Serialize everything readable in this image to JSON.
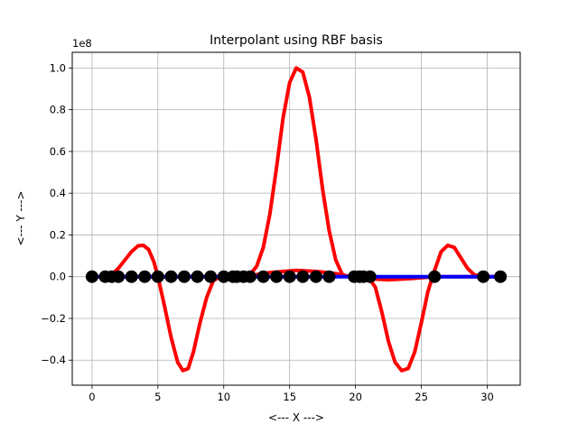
{
  "chart_data": {
    "type": "line",
    "title": "Interpolant using RBF basis",
    "xlabel": "<--- X --->",
    "ylabel": "<--- Y --->",
    "y_scale_label": "1e8",
    "xlim": [
      -1.5,
      32.5
    ],
    "ylim": [
      -0.52,
      1.075
    ],
    "y_multiplier": 100000000,
    "grid": true,
    "x_ticks": [
      0,
      5,
      10,
      15,
      20,
      25,
      30
    ],
    "x_tick_labels": [
      "0",
      "5",
      "10",
      "15",
      "20",
      "25",
      "30"
    ],
    "y_ticks": [
      -0.4,
      -0.2,
      0.0,
      0.2,
      0.4,
      0.6,
      0.8,
      1.0
    ],
    "y_tick_labels": [
      "−0.4",
      "−0.2",
      "0.0",
      "0.2",
      "0.4",
      "0.6",
      "0.8",
      "1.0"
    ],
    "series": [
      {
        "color": "#ff0000",
        "style": "line",
        "points": [
          [
            1.0,
            0.0
          ],
          [
            1.5,
            0.01
          ],
          [
            2.0,
            0.04
          ],
          [
            2.5,
            0.08
          ],
          [
            3.0,
            0.12
          ],
          [
            3.5,
            0.148
          ],
          [
            3.9,
            0.15
          ],
          [
            4.3,
            0.13
          ],
          [
            4.7,
            0.07
          ],
          [
            5.0,
            0.0
          ],
          [
            5.5,
            -0.14
          ],
          [
            6.0,
            -0.29
          ],
          [
            6.5,
            -0.41
          ],
          [
            6.9,
            -0.45
          ],
          [
            7.3,
            -0.44
          ],
          [
            7.7,
            -0.36
          ],
          [
            8.2,
            -0.22
          ],
          [
            8.7,
            -0.1
          ],
          [
            9.2,
            -0.02
          ],
          [
            9.7,
            0.0
          ],
          [
            10.0,
            0.0
          ],
          [
            11.0,
            0.0
          ],
          [
            12.0,
            0.01
          ],
          [
            12.5,
            0.05
          ],
          [
            13.0,
            0.14
          ],
          [
            13.5,
            0.3
          ],
          [
            14.0,
            0.52
          ],
          [
            14.5,
            0.76
          ],
          [
            15.0,
            0.93
          ],
          [
            15.5,
            1.0
          ],
          [
            16.0,
            0.98
          ],
          [
            16.5,
            0.86
          ],
          [
            17.0,
            0.66
          ],
          [
            17.5,
            0.42
          ],
          [
            18.0,
            0.22
          ],
          [
            18.5,
            0.08
          ],
          [
            19.0,
            0.01
          ],
          [
            19.5,
            0.0
          ],
          [
            20.0,
            0.0
          ],
          [
            21.0,
            -0.005
          ],
          [
            21.5,
            -0.05
          ],
          [
            22.0,
            -0.17
          ],
          [
            22.5,
            -0.31
          ],
          [
            23.0,
            -0.41
          ],
          [
            23.5,
            -0.45
          ],
          [
            24.0,
            -0.44
          ],
          [
            24.5,
            -0.36
          ],
          [
            25.0,
            -0.22
          ],
          [
            25.5,
            -0.07
          ],
          [
            26.0,
            0.03
          ],
          [
            26.5,
            0.12
          ],
          [
            27.0,
            0.15
          ],
          [
            27.5,
            0.14
          ],
          [
            28.0,
            0.09
          ],
          [
            28.5,
            0.04
          ],
          [
            29.0,
            0.01
          ],
          [
            29.5,
            0.0
          ],
          [
            31.0,
            0.0
          ]
        ]
      },
      {
        "color": "#ff0000",
        "style": "line",
        "points": [
          [
            0,
            0.0
          ],
          [
            5.0,
            0.0
          ],
          [
            10.0,
            0.0
          ],
          [
            12.0,
            0.005
          ],
          [
            13.5,
            0.02
          ],
          [
            15.5,
            0.03
          ],
          [
            17.0,
            0.025
          ],
          [
            18.5,
            0.015
          ],
          [
            19.5,
            0.0
          ],
          [
            21.0,
            -0.01
          ],
          [
            22.5,
            -0.015
          ],
          [
            24.0,
            -0.01
          ],
          [
            26.0,
            0.0
          ],
          [
            28.0,
            0.0
          ],
          [
            31.0,
            0.0
          ]
        ]
      },
      {
        "color": "#0000ff",
        "style": "line",
        "points": [
          [
            0,
            0.0
          ],
          [
            1.5,
            0.0
          ],
          [
            10.5,
            0.0
          ],
          [
            12.5,
            0.0
          ],
          [
            20.0,
            0.0
          ],
          [
            26.0,
            0.0
          ],
          [
            29.5,
            0.0
          ],
          [
            31.0,
            0.0
          ]
        ]
      },
      {
        "color": "#000000",
        "style": "markers",
        "points": [
          [
            0,
            0.0
          ],
          [
            1.0,
            0.0
          ],
          [
            1.5,
            0.0
          ],
          [
            2.0,
            0.0
          ],
          [
            3.0,
            0.0
          ],
          [
            4.0,
            0.0
          ],
          [
            5.0,
            0.0
          ],
          [
            6.0,
            0.0
          ],
          [
            7.0,
            0.0
          ],
          [
            8.0,
            0.0
          ],
          [
            9.0,
            0.0
          ],
          [
            10.0,
            0.0
          ],
          [
            10.7,
            0.0
          ],
          [
            11.0,
            0.0
          ],
          [
            11.5,
            0.0
          ],
          [
            12.0,
            0.0
          ],
          [
            13.0,
            0.0
          ],
          [
            14.0,
            0.0
          ],
          [
            15.0,
            0.0
          ],
          [
            16.0,
            0.0
          ],
          [
            17.0,
            0.0
          ],
          [
            18.0,
            0.0
          ],
          [
            19.9,
            0.0
          ],
          [
            20.3,
            0.0
          ],
          [
            20.6,
            0.0
          ],
          [
            21.1,
            0.0
          ],
          [
            26.0,
            0.0
          ],
          [
            29.7,
            0.0
          ],
          [
            31.0,
            0.0
          ]
        ]
      }
    ]
  }
}
